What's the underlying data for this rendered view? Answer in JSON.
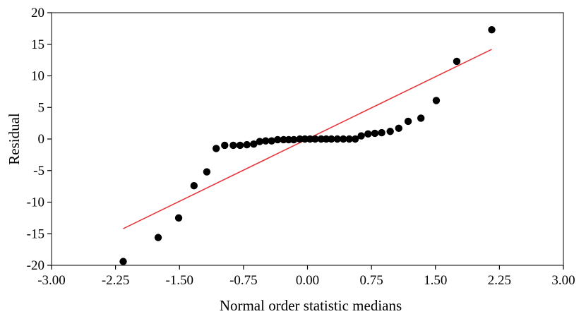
{
  "chart_data": {
    "type": "scatter",
    "title": "",
    "xlabel": "Normal order statistic medians",
    "ylabel": "Residual",
    "xlim": [
      -3.0,
      3.0
    ],
    "ylim": [
      -20,
      20
    ],
    "x_ticks": [
      -3.0,
      -2.25,
      -1.5,
      -0.75,
      0.0,
      0.75,
      1.5,
      2.25,
      3.0
    ],
    "x_tick_labels": [
      "-3.00",
      "-2.25",
      "-1.50",
      "-0.75",
      "0.00",
      "0.75",
      "1.50",
      "2.25",
      "3.00"
    ],
    "y_ticks": [
      -20,
      -15,
      -10,
      -5,
      0,
      5,
      10,
      15,
      20
    ],
    "y_tick_labels": [
      "-20",
      "-15",
      "-10",
      "-5",
      "0",
      "5",
      "10",
      "15",
      "20"
    ],
    "grid": false,
    "legend": "none",
    "series": [
      {
        "kind": "points",
        "color": "#000000",
        "x": [
          -2.16,
          -1.75,
          -1.51,
          -1.33,
          -1.18,
          -1.07,
          -0.97,
          -0.87,
          -0.79,
          -0.71,
          -0.63,
          -0.56,
          -0.49,
          -0.42,
          -0.35,
          -0.28,
          -0.22,
          -0.16,
          -0.09,
          -0.03,
          0.03,
          0.09,
          0.16,
          0.22,
          0.28,
          0.35,
          0.42,
          0.49,
          0.56,
          0.63,
          0.71,
          0.79,
          0.87,
          0.97,
          1.07,
          1.18,
          1.33,
          1.51,
          1.75,
          2.16
        ],
        "y": [
          -19.4,
          -15.6,
          -12.5,
          -7.4,
          -5.2,
          -1.5,
          -1.0,
          -1.0,
          -1.0,
          -0.9,
          -0.8,
          -0.4,
          -0.3,
          -0.3,
          -0.1,
          -0.1,
          -0.1,
          -0.1,
          0.0,
          0.0,
          0.0,
          0.0,
          0.0,
          0.0,
          0.0,
          0.0,
          0.0,
          0.0,
          0.0,
          0.5,
          0.8,
          0.9,
          1.0,
          1.2,
          1.7,
          2.8,
          3.3,
          6.1,
          12.3,
          17.3
        ]
      },
      {
        "kind": "line",
        "color": "#e8383d",
        "x": [
          -2.16,
          2.16
        ],
        "y": [
          -14.2,
          14.2
        ]
      }
    ]
  }
}
